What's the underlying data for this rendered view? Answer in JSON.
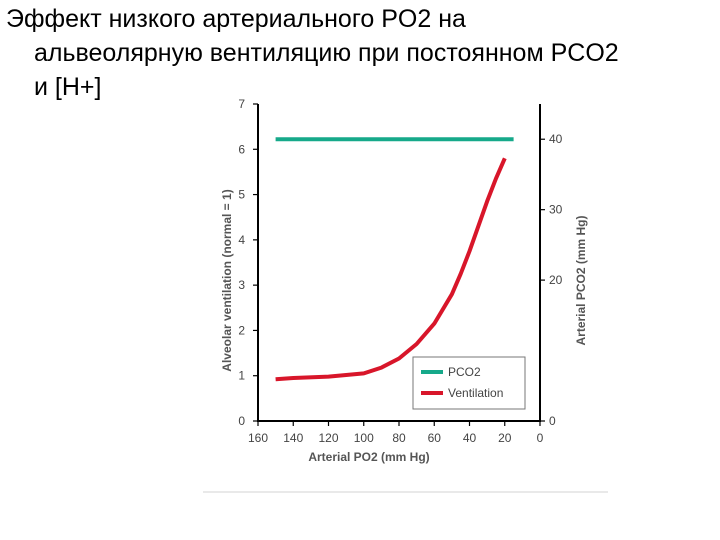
{
  "slide": {
    "title_lines": [
      "Эффект низкого артериального PO2 на",
      "альвеолярную вентиляцию при постоянном PCO2",
      "и  [H+]"
    ]
  },
  "colors": {
    "pco2": "#16a98a",
    "ventilation": "#d8162a",
    "axis": "#000000"
  },
  "chart_data": {
    "type": "line",
    "xlabel": "Arterial PO2 (mm Hg)",
    "ylabel": "Alveolar ventilation (normal = 1)",
    "ylabel_right": "Arterial PCO2 (mm Hg)",
    "xlim": [
      160,
      0
    ],
    "x_reversed": true,
    "xticks": [
      "160",
      "140",
      "120",
      "100",
      "80",
      "60",
      "40",
      "20",
      "0"
    ],
    "ylim": [
      0,
      7
    ],
    "yticks": [
      "0",
      "1",
      "2",
      "3",
      "4",
      "5",
      "6",
      "7"
    ],
    "ylim_right": [
      0,
      45
    ],
    "yticks_right": [
      "0",
      "20",
      "30",
      "40"
    ],
    "grid": false,
    "legend_position": "bottom-right",
    "series": [
      {
        "name": "PCO2",
        "axis": "right",
        "color": "#16a98a",
        "x": [
          150,
          15
        ],
        "y": [
          40,
          40
        ]
      },
      {
        "name": "Ventilation",
        "axis": "left",
        "color": "#d8162a",
        "x": [
          150,
          140,
          120,
          100,
          90,
          80,
          70,
          60,
          50,
          45,
          40,
          35,
          30,
          25,
          20
        ],
        "y": [
          0.92,
          0.95,
          0.98,
          1.05,
          1.18,
          1.38,
          1.7,
          2.15,
          2.8,
          3.25,
          3.75,
          4.3,
          4.85,
          5.35,
          5.8
        ]
      }
    ]
  }
}
